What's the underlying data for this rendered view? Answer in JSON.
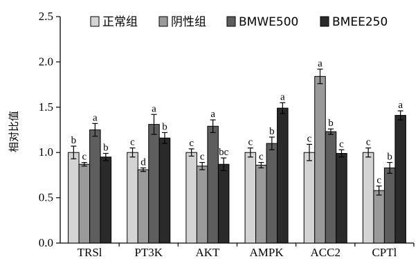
{
  "chart_data": {
    "type": "bar",
    "title": "",
    "xlabel": "",
    "ylabel": "相对比值",
    "ylim": [
      0,
      2.5
    ],
    "yticks": [
      "0.0",
      "0.5",
      "1.0",
      "1.5",
      "2.0",
      "2.5"
    ],
    "categories": [
      "TRSl",
      "PT3K",
      "AKT",
      "AMPK",
      "ACC2",
      "CPTl"
    ],
    "legend_position": "top",
    "series": [
      {
        "name": "正常组",
        "color": "#d4d4d4",
        "values": [
          1.0,
          1.0,
          1.0,
          1.0,
          1.0,
          1.0
        ],
        "errors": [
          0.07,
          0.05,
          0.04,
          0.05,
          0.09,
          0.05
        ],
        "labels": [
          "b",
          "c",
          "c",
          "c",
          "c",
          "c"
        ]
      },
      {
        "name": "阴性组",
        "color": "#9a9a9a",
        "values": [
          0.87,
          0.81,
          0.85,
          0.86,
          1.84,
          0.58
        ],
        "errors": [
          0.02,
          0.02,
          0.04,
          0.03,
          0.08,
          0.05
        ],
        "labels": [
          "c",
          "d",
          "c",
          "c",
          "a",
          "c"
        ]
      },
      {
        "name": "BMWE500",
        "color": "#5e5e5e",
        "values": [
          1.25,
          1.31,
          1.29,
          1.1,
          1.23,
          0.83
        ],
        "errors": [
          0.07,
          0.11,
          0.07,
          0.07,
          0.03,
          0.06
        ],
        "labels": [
          "a",
          "a",
          "a",
          "b",
          "b",
          "b"
        ]
      },
      {
        "name": "BMEE250",
        "color": "#2a2a2a",
        "values": [
          0.95,
          1.16,
          0.87,
          1.49,
          0.99,
          1.41
        ],
        "errors": [
          0.04,
          0.06,
          0.07,
          0.06,
          0.04,
          0.05
        ],
        "labels": [
          "b",
          "b",
          "bc",
          "a",
          "c",
          "a"
        ]
      }
    ]
  }
}
